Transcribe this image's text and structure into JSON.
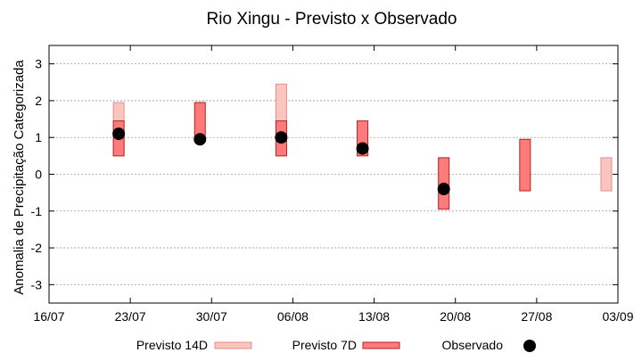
{
  "chart_data": {
    "type": "bar",
    "title": "Rio Xingu - Previsto x Observado",
    "xlabel": "",
    "ylabel": "Anomalia de Precipitação Categorizada",
    "x_ticks": [
      "16/07",
      "23/07",
      "30/07",
      "06/08",
      "13/08",
      "20/08",
      "27/08",
      "03/09"
    ],
    "x_range": [
      "16/07",
      "03/09"
    ],
    "y_ticks": [
      -3,
      -2,
      -1,
      0,
      1,
      2,
      3
    ],
    "ylim": [
      -3.5,
      3.5
    ],
    "grid": true,
    "legend_position": "bottom",
    "series": [
      {
        "name": "Previsto 14D",
        "kind": "range",
        "color": "#f9c5bd",
        "edge": "#e88c8c",
        "points": [
          {
            "x": "22/07",
            "low": 0.5,
            "high": 1.95
          },
          {
            "x": "05/08",
            "low": 0.5,
            "high": 2.45
          },
          {
            "x": "02/09",
            "low": -0.45,
            "high": 0.45
          }
        ]
      },
      {
        "name": "Previsto 7D",
        "kind": "range",
        "color": "#ff7b7b",
        "edge": "#b22222",
        "points": [
          {
            "x": "22/07",
            "low": 0.5,
            "high": 1.45
          },
          {
            "x": "29/07",
            "low": 0.9,
            "high": 1.95
          },
          {
            "x": "05/08",
            "low": 0.5,
            "high": 1.45
          },
          {
            "x": "12/08",
            "low": 0.5,
            "high": 1.45
          },
          {
            "x": "19/08",
            "low": -0.95,
            "high": 0.45
          },
          {
            "x": "26/08",
            "low": -0.45,
            "high": 0.95
          }
        ]
      },
      {
        "name": "Observado",
        "kind": "point",
        "color": "#000000",
        "points": [
          {
            "x": "22/07",
            "y": 1.1
          },
          {
            "x": "29/07",
            "y": 0.95
          },
          {
            "x": "05/08",
            "y": 1.0
          },
          {
            "x": "12/08",
            "y": 0.7
          },
          {
            "x": "19/08",
            "y": -0.4
          }
        ]
      }
    ]
  }
}
